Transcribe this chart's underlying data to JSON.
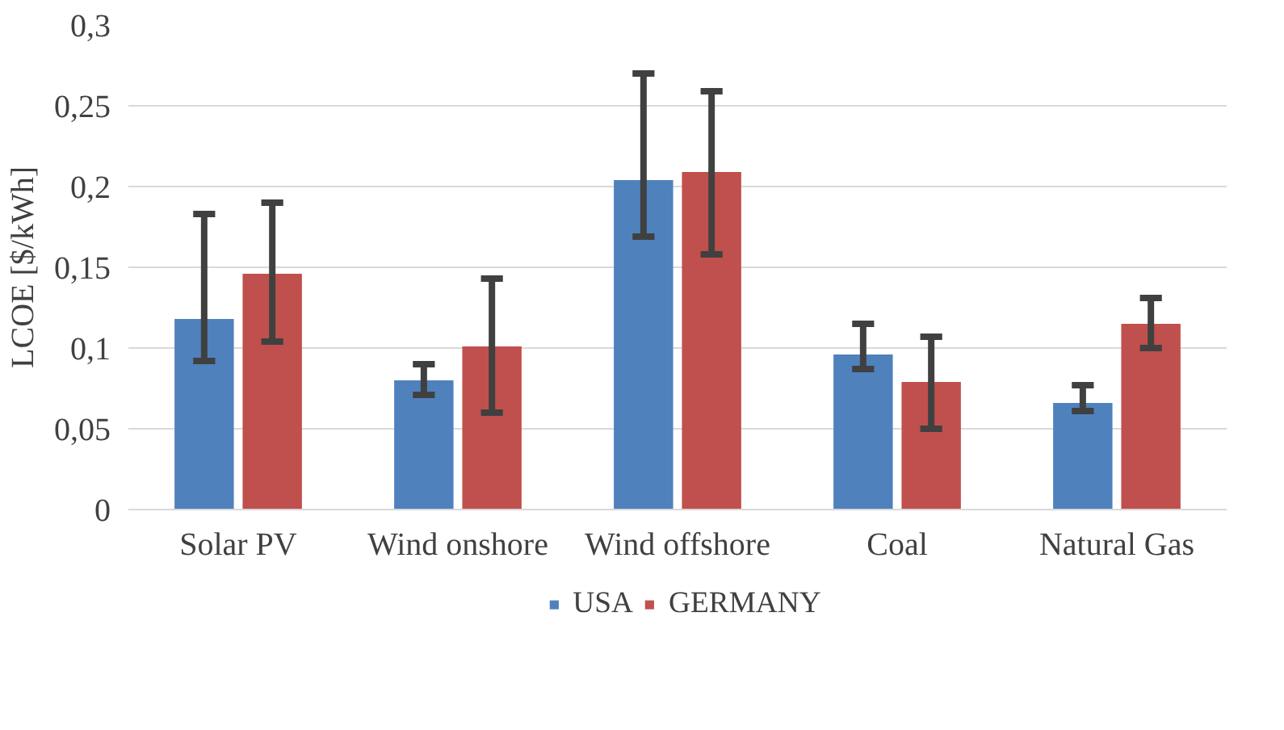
{
  "chart_data": {
    "type": "bar",
    "ylabel": "LCOE [$/kWh]",
    "categories": [
      "Solar PV",
      "Wind onshore",
      "Wind offshore",
      "Coal",
      "Natural Gas"
    ],
    "series": [
      {
        "name": "USA",
        "color": "#4f81bd",
        "values": [
          0.118,
          0.08,
          0.204,
          0.096,
          0.066
        ],
        "errors": [
          [
            0.092,
            0.183
          ],
          [
            0.071,
            0.09
          ],
          [
            0.169,
            0.27
          ],
          [
            0.087,
            0.115
          ],
          [
            0.061,
            0.077
          ]
        ]
      },
      {
        "name": "GERMANY",
        "color": "#c0504d",
        "values": [
          0.146,
          0.101,
          0.209,
          0.079,
          0.115
        ],
        "errors": [
          [
            0.104,
            0.19
          ],
          [
            0.06,
            0.143
          ],
          [
            0.158,
            0.259
          ],
          [
            0.05,
            0.107
          ],
          [
            0.1,
            0.131
          ]
        ]
      }
    ],
    "ylim": [
      0,
      0.3
    ],
    "yticks": [
      {
        "value": 0,
        "label": "0"
      },
      {
        "value": 0.05,
        "label": "0,05"
      },
      {
        "value": 0.1,
        "label": "0,1"
      },
      {
        "value": 0.15,
        "label": "0,15"
      },
      {
        "value": 0.2,
        "label": "0,2"
      },
      {
        "value": 0.25,
        "label": "0,25"
      },
      {
        "value": 0.3,
        "label": "0,3"
      }
    ],
    "grid": "y",
    "legend": "bottom"
  }
}
